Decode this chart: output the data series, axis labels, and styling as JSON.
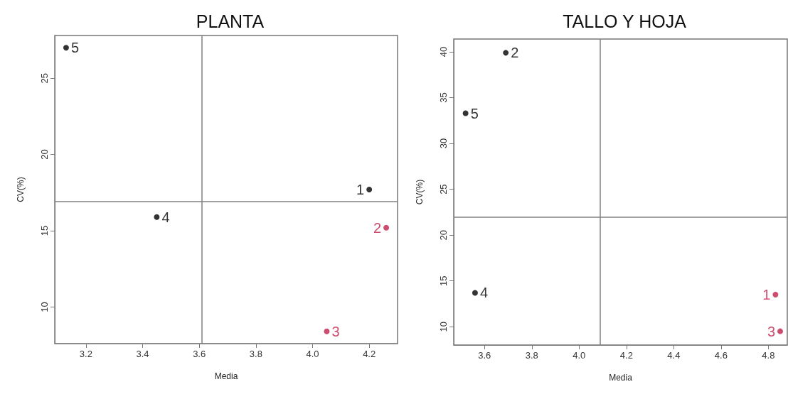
{
  "chart_data": [
    {
      "type": "scatter",
      "title": "PLANTA",
      "xlabel": "Media",
      "ylabel": "CV(%)",
      "marker": "circle",
      "series": [
        {
          "name": "1",
          "color": "#000000",
          "x": [
            4.2
          ],
          "values": [
            17.7
          ]
        },
        {
          "name": "2",
          "color": "#c0204a",
          "x": [
            4.26
          ],
          "values": [
            15.2
          ]
        },
        {
          "name": "3",
          "color": "#c0204a",
          "x": [
            4.05
          ],
          "values": [
            8.4
          ]
        },
        {
          "name": "4",
          "color": "#000000",
          "x": [
            3.45
          ],
          "values": [
            15.9
          ]
        },
        {
          "name": "5",
          "color": "#000000",
          "x": [
            3.13
          ],
          "values": [
            27.0
          ]
        }
      ],
      "xlim": [
        3.09,
        4.3
      ],
      "xticks": [
        3.2,
        3.4,
        3.6,
        3.8,
        {
          "value": 4,
          "label": "4.0"
        },
        4.2
      ],
      "ylim": [
        7.6,
        27.8
      ],
      "yticks": [
        10,
        15,
        20,
        25
      ],
      "ref_lines": [
        {
          "axis": "x",
          "value": 3.61,
          "color": "#808080"
        },
        {
          "axis": "y",
          "value": 16.9,
          "color": "#808080"
        }
      ]
    },
    {
      "type": "scatter",
      "title": "TALLO Y HOJA",
      "xlabel": "Media",
      "ylabel": "CV(%)",
      "marker": "circle",
      "series": [
        {
          "name": "1",
          "color": "#c0204a",
          "x": [
            4.83
          ],
          "values": [
            13.5
          ]
        },
        {
          "name": "2",
          "color": "#000000",
          "x": [
            3.69
          ],
          "values": [
            39.9
          ]
        },
        {
          "name": "3",
          "color": "#c0204a",
          "x": [
            4.85
          ],
          "values": [
            9.5
          ]
        },
        {
          "name": "4",
          "color": "#000000",
          "x": [
            3.56
          ],
          "values": [
            13.7
          ]
        },
        {
          "name": "5",
          "color": "#000000",
          "x": [
            3.52
          ],
          "values": [
            33.3
          ]
        }
      ],
      "xlim": [
        3.47,
        4.88
      ],
      "xticks": [
        3.6,
        3.8,
        {
          "value": 4,
          "label": "4.0"
        },
        4.2,
        4.4,
        4.6,
        4.8
      ],
      "ylim": [
        8,
        41.4
      ],
      "yticks": [
        10,
        15,
        20,
        25,
        30,
        35,
        40
      ],
      "ref_lines": [
        {
          "axis": "x",
          "value": 4.09,
          "color": "#808080"
        },
        {
          "axis": "y",
          "value": 22,
          "color": "#808080"
        }
      ]
    }
  ]
}
